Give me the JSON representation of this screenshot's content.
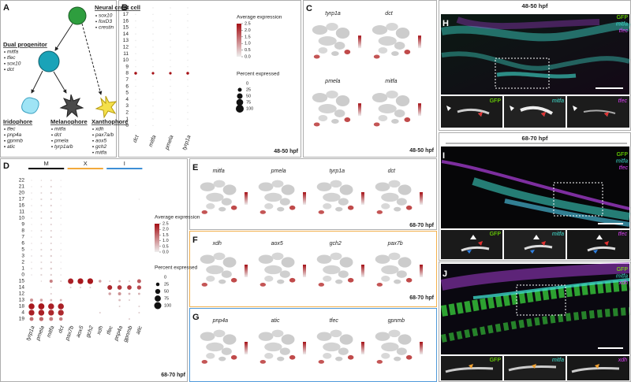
{
  "panels": {
    "A": {
      "letter": "A",
      "nodes": [
        {
          "title": "Neural crest cell",
          "genes": [
            "sox10",
            "foxD3",
            "crestin"
          ]
        },
        {
          "title": "Dual progenitor",
          "genes": [
            "mitfa",
            "tfec",
            "sox10",
            "dct"
          ]
        },
        {
          "title": "Iridophore",
          "genes": [
            "tfec",
            "pnp4a",
            "gpnmb",
            "atic"
          ]
        },
        {
          "title": "Melanophore",
          "genes": [
            "mitfa",
            "dct",
            "pmela",
            "tyrp1a/b"
          ]
        },
        {
          "title": "Xanthophore",
          "genes": [
            "xdh",
            "pax7a/b",
            "aox5",
            "gch2",
            "mitfa"
          ]
        }
      ]
    },
    "C": {
      "letter": "C",
      "plots": [
        "tyrp1a",
        "dct",
        "pmela",
        "mitfa"
      ],
      "stage": "48-50 hpf"
    },
    "E": {
      "letter": "E",
      "plots": [
        "mitfa",
        "pmela",
        "tyrp1a",
        "dct"
      ],
      "stage": "68-70 hpf"
    },
    "F": {
      "letter": "F",
      "plots": [
        "xdh",
        "aox5",
        "gch2",
        "pax7b"
      ],
      "stage": "68-70 hpf"
    },
    "G": {
      "letter": "G",
      "plots": [
        "pnp4a",
        "atic",
        "tfec",
        "gpnmb"
      ]
    },
    "H": {
      "letter": "H",
      "stage": "48-50 hpf",
      "channels": [
        "GFP",
        "mitfa",
        "tfec"
      ]
    },
    "I": {
      "letter": "I",
      "stage": "68-70 hpf",
      "channels": [
        "GFP",
        "mitfa",
        "tfec"
      ]
    },
    "J": {
      "letter": "J",
      "channels": [
        "GFP",
        "mitfa",
        "xdh"
      ]
    }
  },
  "chart_data": [
    {
      "type": "dotplot",
      "panel": "B",
      "categories": [
        "dct",
        "mitfa",
        "pmela",
        "tyrp1a"
      ],
      "rows": [
        "18",
        "17",
        "16",
        "15",
        "14",
        "13",
        "12",
        "11",
        "10",
        "9",
        "8",
        "7",
        "6",
        "5",
        "4",
        "3",
        "2",
        "1",
        "0"
      ],
      "percent": [
        [
          2,
          2,
          2,
          2
        ],
        [
          2,
          2,
          2,
          2
        ],
        [
          2,
          2,
          2,
          2
        ],
        [
          2,
          2,
          2,
          2
        ],
        [
          2,
          2,
          2,
          2
        ],
        [
          2,
          2,
          2,
          2
        ],
        [
          2,
          2,
          2,
          2
        ],
        [
          2,
          2,
          2,
          2
        ],
        [
          2,
          2,
          2,
          2
        ],
        [
          2,
          2,
          2,
          2
        ],
        [
          12,
          10,
          10,
          12
        ],
        [
          2,
          2,
          2,
          2
        ],
        [
          2,
          2,
          2,
          2
        ],
        [
          2,
          2,
          2,
          2
        ],
        [
          2,
          2,
          2,
          2
        ],
        [
          2,
          2,
          2,
          2
        ],
        [
          2,
          2,
          2,
          2
        ],
        [
          2,
          2,
          2,
          2
        ],
        [
          2,
          2,
          2,
          2
        ]
      ],
      "average": [
        [
          0,
          0,
          0,
          0
        ],
        [
          0,
          0,
          0,
          0
        ],
        [
          0,
          0,
          0,
          0
        ],
        [
          0,
          0,
          0,
          0
        ],
        [
          0,
          0,
          0,
          0
        ],
        [
          0,
          0,
          0,
          0
        ],
        [
          0,
          0,
          0,
          0
        ],
        [
          0,
          0,
          0,
          0
        ],
        [
          0,
          0,
          0,
          0
        ],
        [
          0,
          0,
          0,
          0
        ],
        [
          2.5,
          2.5,
          2.5,
          2.5
        ],
        [
          0,
          0,
          0,
          0
        ],
        [
          0,
          0,
          0,
          0
        ],
        [
          0,
          0,
          0,
          0
        ],
        [
          0,
          0,
          0,
          0
        ],
        [
          0,
          0,
          0,
          0
        ],
        [
          0,
          0,
          0,
          0
        ],
        [
          0,
          0,
          0,
          0
        ],
        [
          0,
          0,
          0,
          0
        ]
      ],
      "color_title": "Average expression",
      "color_ticks": [
        2.5,
        {
          "value": 2,
          "label": "2.0"
        },
        1.5,
        {
          "value": 1,
          "label": "1.0"
        },
        0.5,
        {
          "value": 0,
          "label": "0.0"
        }
      ],
      "size_title": "Percent expressed",
      "size_ticks": [
        0,
        25,
        50,
        75,
        100
      ],
      "stage": "48-50 hpf"
    },
    {
      "type": "dotplot",
      "panel": "D",
      "categories": [
        "tyrp1a",
        "pmela",
        "mitfa",
        "dct",
        "pax7b",
        "aox5",
        "gch2",
        "xdh",
        "tfec",
        "pnp4a",
        "gpnmb",
        "atic"
      ],
      "groups": [
        {
          "name": "M",
          "color": "#000000"
        },
        {
          "name": "X",
          "color": "#f2a93b"
        },
        {
          "name": "I",
          "color": "#3d8fd6"
        }
      ],
      "rows": [
        "22",
        "21",
        "20",
        "17",
        "16",
        "11",
        "10",
        "9",
        "8",
        "7",
        "6",
        "5",
        "3",
        "2",
        "1",
        "0",
        "15",
        "14",
        "12",
        "13",
        "18",
        "4",
        "19"
      ],
      "percent": [
        [
          2,
          3,
          4,
          2,
          0,
          0,
          0,
          0,
          0,
          0,
          0,
          0
        ],
        [
          2,
          4,
          5,
          2,
          0,
          0,
          0,
          0,
          0,
          0,
          0,
          0
        ],
        [
          3,
          5,
          6,
          2,
          0,
          0,
          0,
          0,
          0,
          0,
          0,
          0
        ],
        [
          2,
          6,
          5,
          3,
          0,
          0,
          0,
          0,
          0,
          0,
          0,
          2
        ],
        [
          3,
          5,
          6,
          2,
          0,
          0,
          0,
          0,
          0,
          0,
          0,
          0
        ],
        [
          2,
          4,
          5,
          2,
          0,
          0,
          0,
          0,
          0,
          0,
          0,
          0
        ],
        [
          3,
          5,
          6,
          3,
          0,
          0,
          0,
          0,
          0,
          0,
          0,
          0
        ],
        [
          2,
          4,
          5,
          2,
          0,
          0,
          0,
          0,
          0,
          0,
          0,
          0
        ],
        [
          3,
          5,
          5,
          2,
          0,
          0,
          0,
          0,
          0,
          0,
          0,
          0
        ],
        [
          2,
          5,
          6,
          2,
          0,
          0,
          0,
          0,
          0,
          0,
          0,
          0
        ],
        [
          3,
          4,
          5,
          2,
          0,
          0,
          0,
          0,
          0,
          0,
          0,
          0
        ],
        [
          3,
          6,
          6,
          3,
          0,
          0,
          0,
          0,
          0,
          0,
          0,
          0
        ],
        [
          4,
          6,
          7,
          3,
          0,
          0,
          0,
          0,
          0,
          0,
          0,
          0
        ],
        [
          3,
          5,
          6,
          2,
          0,
          0,
          0,
          0,
          0,
          0,
          0,
          0
        ],
        [
          4,
          7,
          8,
          3,
          0,
          0,
          0,
          0,
          0,
          0,
          0,
          0
        ],
        [
          3,
          6,
          7,
          3,
          0,
          0,
          0,
          0,
          0,
          0,
          0,
          0
        ],
        [
          0,
          3,
          20,
          5,
          60,
          65,
          65,
          15,
          5,
          10,
          5,
          30
        ],
        [
          0,
          0,
          5,
          0,
          5,
          5,
          5,
          0,
          45,
          40,
          40,
          35
        ],
        [
          0,
          0,
          5,
          0,
          0,
          0,
          0,
          0,
          15,
          20,
          10,
          10
        ],
        [
          20,
          15,
          10,
          10,
          0,
          0,
          0,
          0,
          0,
          10,
          5,
          0
        ],
        [
          70,
          75,
          70,
          70,
          0,
          0,
          0,
          0,
          0,
          5,
          0,
          5
        ],
        [
          65,
          70,
          65,
          65,
          0,
          0,
          0,
          5,
          0,
          0,
          0,
          5
        ],
        [
          30,
          35,
          30,
          25,
          0,
          0,
          0,
          0,
          0,
          0,
          5,
          0
        ]
      ],
      "average": [
        [
          0.1,
          0.2,
          0.3,
          0.1,
          0,
          0,
          0,
          0,
          0,
          0,
          0,
          0
        ],
        [
          0.1,
          0.2,
          0.3,
          0.1,
          0,
          0,
          0,
          0,
          0,
          0,
          0,
          0
        ],
        [
          0.1,
          0.2,
          0.3,
          0.1,
          0,
          0,
          0,
          0,
          0,
          0,
          0,
          0
        ],
        [
          0.1,
          0.2,
          0.3,
          0.1,
          0,
          0,
          0,
          0,
          0,
          0,
          0,
          0.1
        ],
        [
          0.1,
          0.2,
          0.3,
          0.1,
          0,
          0,
          0,
          0,
          0,
          0,
          0,
          0
        ],
        [
          0.1,
          0.2,
          0.3,
          0.1,
          0,
          0,
          0,
          0,
          0,
          0,
          0,
          0
        ],
        [
          0.1,
          0.2,
          0.3,
          0.1,
          0,
          0,
          0,
          0,
          0,
          0,
          0,
          0
        ],
        [
          0.1,
          0.2,
          0.3,
          0.1,
          0,
          0,
          0,
          0,
          0,
          0,
          0,
          0
        ],
        [
          0.1,
          0.2,
          0.3,
          0.1,
          0,
          0,
          0,
          0,
          0,
          0,
          0,
          0
        ],
        [
          0.1,
          0.2,
          0.3,
          0.1,
          0,
          0,
          0,
          0,
          0,
          0,
          0,
          0
        ],
        [
          0.1,
          0.2,
          0.3,
          0.1,
          0,
          0,
          0,
          0,
          0,
          0,
          0,
          0
        ],
        [
          0.1,
          0.2,
          0.3,
          0.1,
          0,
          0,
          0,
          0,
          0,
          0,
          0,
          0
        ],
        [
          0.1,
          0.2,
          0.3,
          0.1,
          0,
          0,
          0,
          0,
          0,
          0,
          0,
          0
        ],
        [
          0.1,
          0.2,
          0.3,
          0.1,
          0,
          0,
          0,
          0,
          0,
          0,
          0,
          0
        ],
        [
          0.1,
          0.2,
          0.3,
          0.1,
          0,
          0,
          0,
          0,
          0,
          0,
          0,
          0
        ],
        [
          0.1,
          0.2,
          0.3,
          0.1,
          0,
          0,
          0,
          0,
          0,
          0,
          0,
          0
        ],
        [
          0,
          0.2,
          1.2,
          0.3,
          2.3,
          2.4,
          2.4,
          0.8,
          0.3,
          0.6,
          0.3,
          1.6
        ],
        [
          0,
          0,
          0.3,
          0,
          0.3,
          0.3,
          0.3,
          0,
          2.2,
          2,
          2,
          1.8
        ],
        [
          0,
          0,
          0.3,
          0,
          0,
          0,
          0,
          0,
          0.8,
          1,
          0.6,
          0.6
        ],
        [
          1,
          0.8,
          0.5,
          0.6,
          0,
          0,
          0,
          0,
          0,
          0.5,
          0.3,
          0
        ],
        [
          2.4,
          2.4,
          2.3,
          2.3,
          0,
          0,
          0,
          0,
          0,
          0.3,
          0,
          0.3
        ],
        [
          2.3,
          2.3,
          2.2,
          2.2,
          0,
          0,
          0,
          0.3,
          0,
          0,
          0,
          0.3
        ],
        [
          1.4,
          1.5,
          1.2,
          1.2,
          0,
          0,
          0,
          0,
          0,
          0,
          0.3,
          0
        ]
      ],
      "color_title": "Average expression",
      "color_ticks": [
        2.5,
        {
          "value": 2,
          "label": "2.0"
        },
        1.5,
        {
          "value": 1,
          "label": "1.0"
        },
        0.5,
        {
          "value": 0,
          "label": "0.0"
        }
      ],
      "size_title": "Percent expressed",
      "size_ticks": [
        0,
        25,
        50,
        75,
        100
      ],
      "stage": "68-70 hpf"
    }
  ]
}
